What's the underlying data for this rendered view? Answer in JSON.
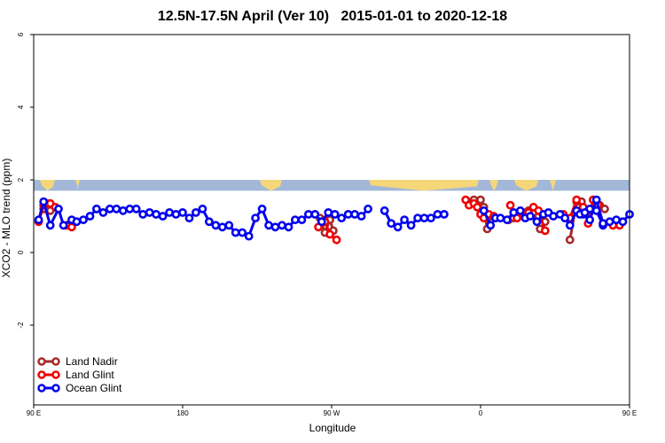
{
  "chart_data": {
    "type": "line",
    "title": "12.5N-17.5N April (Ver 10)   2015-01-01 to 2020-12-18",
    "xlabel": "Longitude",
    "ylabel": "XCO2 - MLO trend (ppm)",
    "xlim": [
      90,
      450
    ],
    "ylim": [
      -4,
      6
    ],
    "xticks": [
      {
        "value": 90,
        "label": "90 E"
      },
      {
        "value": 180,
        "label": "180"
      },
      {
        "value": 270,
        "label": "90 W"
      },
      {
        "value": 360,
        "label": "0"
      },
      {
        "value": 450,
        "label": "90 E"
      },
      {
        "value": 540,
        "label": "180"
      }
    ],
    "yticks": [
      {
        "value": -2,
        "label": "-2"
      },
      {
        "value": 0,
        "label": "0"
      },
      {
        "value": 2,
        "label": "2"
      },
      {
        "value": 4,
        "label": "4"
      },
      {
        "value": 6,
        "label": "6"
      }
    ],
    "legend_position": "bottom-left",
    "map_band": {
      "ymin": 1.7,
      "ymax": 2.0,
      "ocean_color": "#a3b8d8",
      "land_color": "#f5d77a"
    },
    "series": [
      {
        "name": "Land Nadir",
        "color": "#a52a2a",
        "segments": [
          [
            [
              96,
              1.2
            ],
            [
              98,
              1.35
            ],
            [
              100,
              1.15
            ]
          ],
          [
            [
              263,
              0.95
            ],
            [
              266,
              0.55
            ],
            [
              269,
              0.9
            ],
            [
              271,
              0.6
            ]
          ],
          [
            [
              356,
              1.45
            ],
            [
              360,
              1.45
            ],
            [
              362,
              1.25
            ],
            [
              364,
              0.65
            ],
            [
              366,
              1.0
            ]
          ],
          [
            [
              377,
              0.9
            ],
            [
              380,
              0.95
            ],
            [
              383,
              1.05
            ],
            [
              386,
              1.1
            ],
            [
              389,
              1.15
            ],
            [
              392,
              1.1
            ],
            [
              396,
              0.65
            ],
            [
              399,
              0.85
            ]
          ],
          [
            [
              414,
              0.35
            ],
            [
              418,
              1.4
            ],
            [
              421,
              1.4
            ]
          ],
          [
            [
              432,
              1.3
            ],
            [
              435,
              1.2
            ]
          ]
        ]
      },
      {
        "name": "Land Glint",
        "color": "#ee0000",
        "segments": [
          [
            [
              93,
              0.85
            ],
            [
              96,
              1.3
            ],
            [
              100,
              1.35
            ],
            [
              103,
              1.25
            ]
          ],
          [
            [
              110,
              0.75
            ],
            [
              113,
              0.7
            ]
          ],
          [
            [
              262,
              0.7
            ],
            [
              266,
              0.85
            ],
            [
              269,
              0.5
            ],
            [
              273,
              0.35
            ]
          ],
          [
            [
              351,
              1.45
            ],
            [
              353,
              1.3
            ],
            [
              356,
              1.35
            ],
            [
              358,
              1.25
            ],
            [
              360,
              1.05
            ],
            [
              362,
              0.95
            ],
            [
              365,
              1.05
            ],
            [
              368,
              1.0
            ]
          ],
          [
            [
              378,
              1.3
            ],
            [
              382,
              0.95
            ],
            [
              386,
              1.0
            ],
            [
              389,
              1.1
            ],
            [
              392,
              1.25
            ],
            [
              395,
              1.15
            ],
            [
              399,
              0.6
            ]
          ],
          [
            [
              410,
              1.05
            ],
            [
              414,
              0.95
            ],
            [
              418,
              1.45
            ],
            [
              422,
              1.25
            ],
            [
              425,
              0.8
            ],
            [
              428,
              1.45
            ],
            [
              431,
              1.3
            ]
          ],
          [
            [
              440,
              0.75
            ],
            [
              444,
              0.75
            ]
          ]
        ]
      },
      {
        "name": "Ocean Glint",
        "color": "#0000ee",
        "segments": [
          [
            [
              93,
              0.9
            ],
            [
              96,
              1.4
            ],
            [
              100,
              0.75
            ],
            [
              105,
              1.2
            ],
            [
              108,
              0.75
            ],
            [
              113,
              0.9
            ],
            [
              116,
              0.85
            ],
            [
              120,
              0.9
            ],
            [
              124,
              1.0
            ],
            [
              128,
              1.2
            ],
            [
              132,
              1.1
            ],
            [
              136,
              1.2
            ],
            [
              140,
              1.2
            ],
            [
              144,
              1.15
            ],
            [
              148,
              1.2
            ],
            [
              152,
              1.2
            ],
            [
              156,
              1.05
            ],
            [
              160,
              1.1
            ],
            [
              164,
              1.05
            ],
            [
              168,
              1.0
            ],
            [
              172,
              1.1
            ],
            [
              176,
              1.05
            ],
            [
              180,
              1.1
            ],
            [
              184,
              0.95
            ],
            [
              188,
              1.1
            ],
            [
              192,
              1.2
            ],
            [
              196,
              0.85
            ],
            [
              200,
              0.75
            ],
            [
              204,
              0.7
            ],
            [
              208,
              0.75
            ],
            [
              212,
              0.55
            ],
            [
              216,
              0.55
            ],
            [
              220,
              0.45
            ],
            [
              224,
              0.95
            ],
            [
              228,
              1.2
            ],
            [
              232,
              0.75
            ],
            [
              236,
              0.7
            ],
            [
              240,
              0.75
            ],
            [
              244,
              0.7
            ],
            [
              248,
              0.9
            ],
            [
              252,
              0.9
            ],
            [
              256,
              1.05
            ],
            [
              260,
              1.05
            ],
            [
              264,
              0.85
            ],
            [
              268,
              1.1
            ],
            [
              272,
              1.05
            ],
            [
              276,
              0.95
            ],
            [
              280,
              1.05
            ],
            [
              284,
              1.05
            ],
            [
              288,
              1.0
            ],
            [
              292,
              1.2
            ]
          ],
          [
            [
              302,
              1.15
            ],
            [
              306,
              0.8
            ],
            [
              310,
              0.7
            ],
            [
              314,
              0.9
            ],
            [
              318,
              0.75
            ],
            [
              322,
              0.95
            ],
            [
              326,
              0.95
            ],
            [
              330,
              0.95
            ],
            [
              334,
              1.05
            ],
            [
              338,
              1.05
            ]
          ],
          [
            [
              362,
              1.15
            ],
            [
              366,
              0.75
            ],
            [
              369,
              0.95
            ],
            [
              372,
              0.95
            ],
            [
              376,
              0.9
            ],
            [
              380,
              1.1
            ],
            [
              384,
              1.15
            ],
            [
              387,
              0.95
            ],
            [
              390,
              1.0
            ],
            [
              394,
              0.85
            ],
            [
              398,
              1.05
            ],
            [
              401,
              1.1
            ],
            [
              404,
              1.0
            ],
            [
              408,
              1.05
            ],
            [
              411,
              0.95
            ],
            [
              414,
              0.75
            ],
            [
              418,
              1.15
            ],
            [
              422,
              1.05
            ],
            [
              426,
              1.2
            ],
            [
              430,
              1.15
            ],
            [
              434,
              0.75
            ],
            [
              438,
              0.85
            ],
            [
              442,
              0.9
            ],
            [
              446,
              0.85
            ],
            [
              450,
              1.05
            ]
          ],
          [
            [
              420,
              1.05
            ],
            [
              423,
              1.1
            ],
            [
              426,
              0.9
            ],
            [
              430,
              1.45
            ],
            [
              434,
              0.8
            ]
          ]
        ]
      }
    ]
  }
}
